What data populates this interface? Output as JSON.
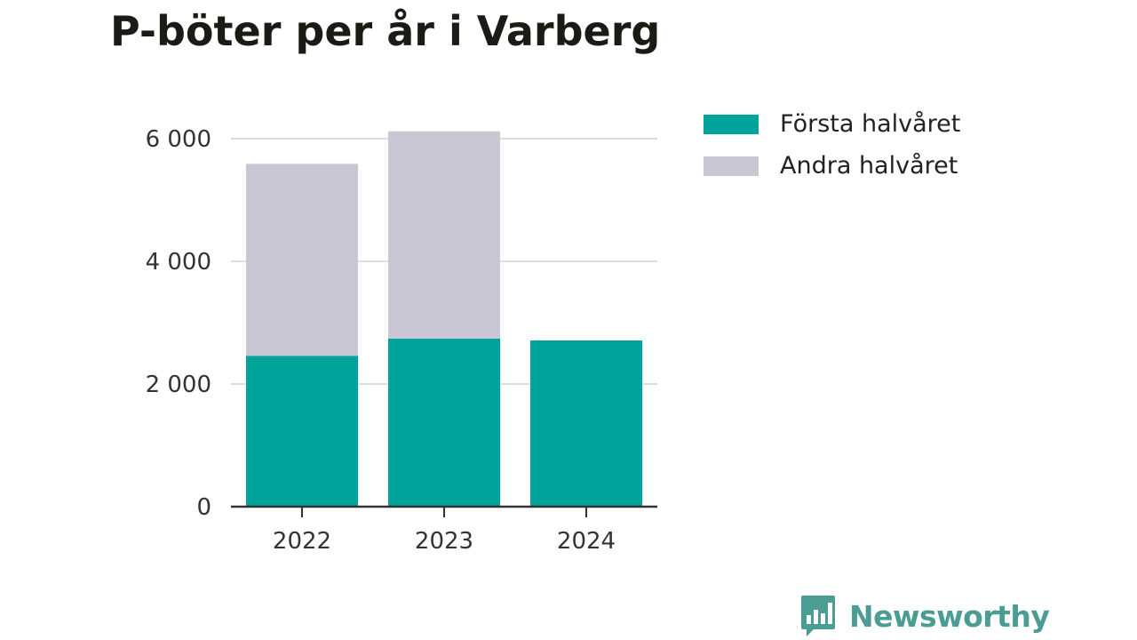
{
  "chart_data": {
    "type": "bar",
    "stacked": true,
    "title": "P-böter per år i Varberg",
    "xlabel": "",
    "ylabel": "",
    "categories": [
      "2022",
      "2023",
      "2024"
    ],
    "series": [
      {
        "name": "Första halvåret",
        "color": "#00a39a",
        "values": [
          2460,
          2740,
          2710
        ]
      },
      {
        "name": "Andra halvåret",
        "color": "#c8c7d3",
        "values": [
          3130,
          3380,
          0
        ]
      }
    ],
    "ylim": [
      0,
      6400
    ],
    "yticks": [
      0,
      2000,
      4000,
      6000
    ],
    "ytick_labels": [
      "0",
      "2 000",
      "4 000",
      "6 000"
    ],
    "grid": true,
    "legend_position": "top-right"
  },
  "brand": {
    "name": "Newsworthy",
    "color": "#4b9c92",
    "icon": "bar-chart-speech-bubble-icon"
  }
}
